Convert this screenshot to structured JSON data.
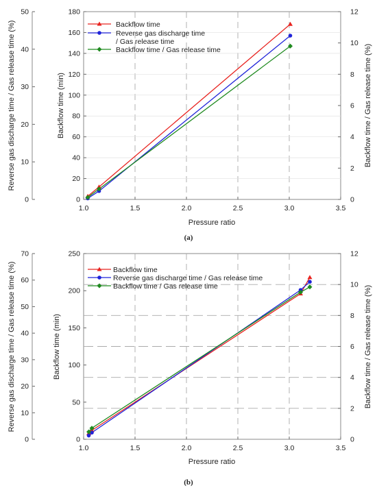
{
  "figure": {
    "panel_a_caption": "(a)",
    "panel_b_caption": "(b)"
  },
  "chart_data": [
    {
      "type": "line",
      "panel": "(a)",
      "xlabel": "Pressure ratio",
      "ylabel": "Backflow time (min)",
      "y2label_right": "Backflow time / Gas release time (%)",
      "y3label_left": "Reverse gas discharge time / Gas release time (%)",
      "xlim": [
        1.0,
        3.5
      ],
      "ylim": [
        0,
        180
      ],
      "y_right_lim": [
        0,
        12
      ],
      "y_left_lim": [
        0,
        50
      ],
      "x_ticks": [
        "1.0",
        "1.5",
        "2.0",
        "2.5",
        "3.0",
        "3.5"
      ],
      "y_ticks": [
        "0",
        "20",
        "40",
        "60",
        "80",
        "100",
        "120",
        "140",
        "160",
        "180"
      ],
      "y_right_ticks": [
        "0",
        "2",
        "4",
        "6",
        "8",
        "10",
        "12"
      ],
      "y_left_ticks": [
        "0",
        "10",
        "20",
        "30",
        "40",
        "50"
      ],
      "grid": "dashed",
      "legend_position": "top-left",
      "series": [
        {
          "name": "Backflow time",
          "color": "#e8231f",
          "marker": "triangle",
          "axis": "primary",
          "x": [
            1.04,
            1.15,
            3.01
          ],
          "y": [
            3,
            12,
            168
          ]
        },
        {
          "name": "Reverse gas discharge time",
          "name_line2": "/ Gas release time",
          "color": "#1f23d9",
          "marker": "circle",
          "axis": "primary",
          "x": [
            1.04,
            1.15,
            3.01
          ],
          "y": [
            1,
            8,
            157
          ]
        },
        {
          "name": "Backflow time / Gas release time",
          "color": "#1f8a1f",
          "marker": "diamond",
          "axis": "primary",
          "x": [
            1.04,
            1.15,
            3.01
          ],
          "y": [
            2,
            10,
            147
          ]
        }
      ]
    },
    {
      "type": "line",
      "panel": "(b)",
      "xlabel": "Pressure ratio",
      "ylabel": "Backflow time (min)",
      "y2label_right": "Backflow time / Gas release time (%)",
      "y3label_left": "Reverse gas discharge time / Gas release time (%)",
      "xlim": [
        1.0,
        3.5
      ],
      "ylim": [
        0,
        250
      ],
      "y_right_lim": [
        0,
        12
      ],
      "y_left_lim": [
        0,
        70
      ],
      "x_ticks": [
        "1.0",
        "1.5",
        "2.0",
        "2.5",
        "3.0",
        "3.5"
      ],
      "y_ticks": [
        "0",
        "50",
        "100",
        "150",
        "200",
        "250"
      ],
      "y_right_ticks": [
        "0",
        "2",
        "4",
        "6",
        "8",
        "10",
        "12"
      ],
      "y_left_ticks": [
        "0",
        "10",
        "20",
        "30",
        "40",
        "50",
        "60",
        "70"
      ],
      "grid": "dashed",
      "legend_position": "top-left",
      "series": [
        {
          "name": "Backflow time",
          "color": "#e8231f",
          "marker": "triangle",
          "axis": "primary",
          "x": [
            1.05,
            1.08,
            3.11,
            3.2
          ],
          "y": [
            8,
            12,
            196,
            218
          ]
        },
        {
          "name": "Reverse gas discharge time / Gas release time",
          "color": "#1f23d9",
          "marker": "circle",
          "axis": "primary",
          "x": [
            1.05,
            1.08,
            3.11,
            3.2
          ],
          "y": [
            5,
            9,
            201,
            212
          ]
        },
        {
          "name": "Backflow time / Gas release time",
          "color": "#1f8a1f",
          "marker": "diamond",
          "axis": "primary",
          "x": [
            1.05,
            1.08,
            3.11,
            3.2
          ],
          "y": [
            10,
            15,
            198,
            205
          ]
        }
      ]
    }
  ]
}
